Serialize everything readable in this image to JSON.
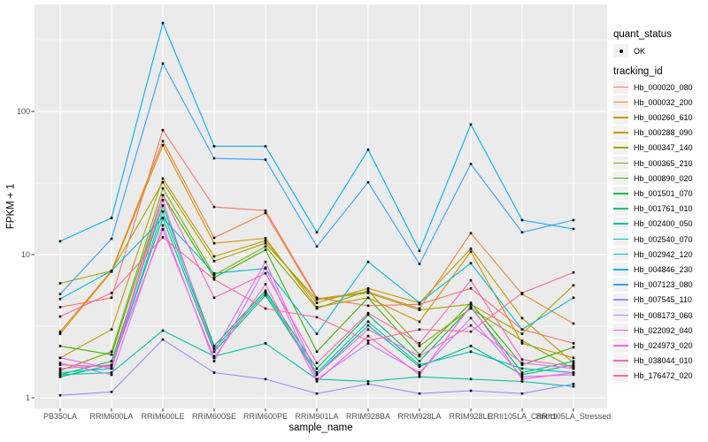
{
  "figure": {
    "y_axis": {
      "title": "FPKM + 1",
      "tick_labels": [
        "100",
        "10",
        "1"
      ],
      "tick_values": [
        100,
        10,
        1
      ]
    },
    "x_axis": {
      "title": "sample_name"
    }
  },
  "legend": {
    "quant_status": {
      "title": "quant_status",
      "items": [
        {
          "label": "OK",
          "glyph": "point-icon",
          "color": "#000000"
        }
      ]
    },
    "tracking_id": {
      "title": "tracking_id",
      "items": [
        {
          "label": "Hb_000020_080",
          "color": "#F8766D"
        },
        {
          "label": "Hb_000032_200",
          "color": "#EA8331"
        },
        {
          "label": "Hb_000260_610",
          "color": "#D89000"
        },
        {
          "label": "Hb_000288_090",
          "color": "#C09B00"
        },
        {
          "label": "Hb_000347_140",
          "color": "#A3A500"
        },
        {
          "label": "Hb_000365_210",
          "color": "#7CAE00"
        },
        {
          "label": "Hb_000890_020",
          "color": "#39B600"
        },
        {
          "label": "Hb_001501_070",
          "color": "#00BB4E"
        },
        {
          "label": "Hb_001761_010",
          "color": "#00BF7D"
        },
        {
          "label": "Hb_002400_050",
          "color": "#00C1A3"
        },
        {
          "label": "Hb_002540_070",
          "color": "#00BFC4"
        },
        {
          "label": "Hb_002942_120",
          "color": "#00BBDC"
        },
        {
          "label": "Hb_004846_230",
          "color": "#00B0F6"
        },
        {
          "label": "Hb_007123_080",
          "color": "#35A2FF"
        },
        {
          "label": "Hb_007545_110",
          "color": "#9590FF"
        },
        {
          "label": "Hb_008173_060",
          "color": "#C77CFF"
        },
        {
          "label": "Hb_022092_040",
          "color": "#E76BF3"
        },
        {
          "label": "Hb_024973_020",
          "color": "#FA62DB"
        },
        {
          "label": "Hb_038044_010",
          "color": "#FF62BC"
        },
        {
          "label": "Hb_176472_020",
          "color": "#FF6A98"
        }
      ]
    }
  },
  "chart_data": {
    "type": "line",
    "title": "",
    "xlabel": "sample_name",
    "ylabel": "FPKM + 1",
    "y_scale": "log10",
    "y_ticks": [
      1,
      10,
      100
    ],
    "y_minor_ticks": [
      3.162,
      31.62,
      316.2
    ],
    "ylim": [
      0.84,
      560
    ],
    "grid": true,
    "legend_position": "right",
    "point_marker": "black-square",
    "quant_status_all_points": "OK",
    "categories": [
      "PB350LA",
      "RRIM600LA",
      "RRIM600LE",
      "RRIM600SE",
      "RRIM600PE",
      "RRIM901LA",
      "RRIM928BA",
      "RRIM928LA",
      "RRIM928LE",
      "RRII105LA_Control",
      "RRII105LA_Stressed"
    ],
    "series": [
      {
        "name": "Hb_000020_080",
        "color": "#F8766D",
        "values": [
          4.3,
          5.0,
          74,
          21.5,
          20.3,
          5.0,
          4.4,
          4.5,
          5.8,
          3.0,
          2.4
        ]
      },
      {
        "name": "Hb_000032_200",
        "color": "#EA8331",
        "values": [
          2.9,
          7.7,
          62,
          13.1,
          19.5,
          4.9,
          5.5,
          4.2,
          14.1,
          5.3,
          3.3
        ]
      },
      {
        "name": "Hb_000260_610",
        "color": "#D89000",
        "values": [
          2.8,
          7.6,
          58,
          12.0,
          13.0,
          4.3,
          5.0,
          3.4,
          10.5,
          2.4,
          1.9
        ]
      },
      {
        "name": "Hb_000288_090",
        "color": "#C09B00",
        "values": [
          1.9,
          3.0,
          34,
          9.7,
          12.5,
          4.6,
          5.8,
          4.6,
          11.0,
          3.6,
          1.75
        ]
      },
      {
        "name": "Hb_000347_140",
        "color": "#A3A500",
        "values": [
          6.3,
          7.7,
          32,
          9.0,
          12.0,
          4.85,
          5.4,
          4.1,
          4.5,
          2.8,
          6.1
        ]
      },
      {
        "name": "Hb_000365_210",
        "color": "#7CAE00",
        "values": [
          1.55,
          2.1,
          29,
          7.2,
          11.4,
          4.2,
          5.6,
          2.3,
          4.2,
          2.5,
          1.6
        ]
      },
      {
        "name": "Hb_000890_020",
        "color": "#39B600",
        "values": [
          2.3,
          2.0,
          26,
          6.9,
          10.8,
          2.1,
          5.0,
          2.0,
          4.6,
          1.7,
          2.25
        ]
      },
      {
        "name": "Hb_001501_070",
        "color": "#00BB4E",
        "values": [
          1.45,
          1.8,
          22,
          2.3,
          5.6,
          1.6,
          3.8,
          1.8,
          4.3,
          1.5,
          1.8
        ]
      },
      {
        "name": "Hb_001761_010",
        "color": "#00BF7D",
        "values": [
          1.4,
          1.7,
          18,
          2.1,
          5.2,
          1.45,
          3.2,
          1.65,
          2.3,
          1.45,
          1.7
        ]
      },
      {
        "name": "Hb_002400_050",
        "color": "#00C1A3",
        "values": [
          1.45,
          1.5,
          2.95,
          1.95,
          2.4,
          1.35,
          1.3,
          1.4,
          1.35,
          1.3,
          1.2
        ]
      },
      {
        "name": "Hb_002540_070",
        "color": "#00BFC4",
        "values": [
          1.5,
          1.6,
          20,
          2.2,
          5.4,
          1.5,
          3.4,
          1.7,
          2.1,
          1.6,
          1.5
        ]
      },
      {
        "name": "Hb_002942_120",
        "color": "#00BBDC",
        "values": [
          4.9,
          7.7,
          18,
          7.4,
          8.0,
          2.8,
          8.9,
          4.6,
          8.7,
          3.0,
          5.0
        ]
      },
      {
        "name": "Hb_004846_230",
        "color": "#00B0F6",
        "values": [
          12.4,
          18,
          414,
          57,
          57,
          14.3,
          54,
          10.6,
          81,
          17.4,
          15.1
        ]
      },
      {
        "name": "Hb_007123_080",
        "color": "#35A2FF",
        "values": [
          5.3,
          12.9,
          216,
          47,
          46,
          11.4,
          32,
          8.6,
          43,
          14.3,
          17.4
        ]
      },
      {
        "name": "Hb_007545_110",
        "color": "#9590FF",
        "values": [
          1.04,
          1.1,
          2.55,
          1.5,
          1.35,
          1.07,
          1.25,
          1.07,
          1.12,
          1.07,
          1.25
        ]
      },
      {
        "name": "Hb_008173_060",
        "color": "#C77CFF",
        "values": [
          1.75,
          1.45,
          16,
          1.8,
          8.1,
          1.35,
          2.4,
          1.5,
          3.6,
          1.4,
          1.45
        ]
      },
      {
        "name": "Hb_022092_040",
        "color": "#E76BF3",
        "values": [
          1.9,
          1.6,
          24,
          2.1,
          8.9,
          1.45,
          3.0,
          1.95,
          3.2,
          1.75,
          1.6
        ]
      },
      {
        "name": "Hb_024973_020",
        "color": "#FA62DB",
        "values": [
          1.6,
          1.7,
          15,
          1.9,
          6.2,
          1.3,
          2.7,
          1.45,
          4.4,
          1.35,
          1.5
        ]
      },
      {
        "name": "Hb_038044_010",
        "color": "#FF62BC",
        "values": [
          1.7,
          1.65,
          26,
          5.0,
          7.4,
          1.75,
          3.9,
          2.4,
          6.6,
          1.85,
          1.65
        ]
      },
      {
        "name": "Hb_176472_020",
        "color": "#FF6A98",
        "values": [
          3.7,
          5.4,
          13.2,
          6.7,
          4.2,
          3.65,
          2.5,
          3.0,
          2.9,
          5.4,
          7.5
        ]
      }
    ]
  },
  "colors": {
    "panel_bg": "#EBEBEB",
    "grid": "#FFFFFF",
    "legend_key_bg": "#F2F2F2",
    "tick_text": "#4D4D4D",
    "tick_mark": "#333333",
    "point": "#000000"
  }
}
